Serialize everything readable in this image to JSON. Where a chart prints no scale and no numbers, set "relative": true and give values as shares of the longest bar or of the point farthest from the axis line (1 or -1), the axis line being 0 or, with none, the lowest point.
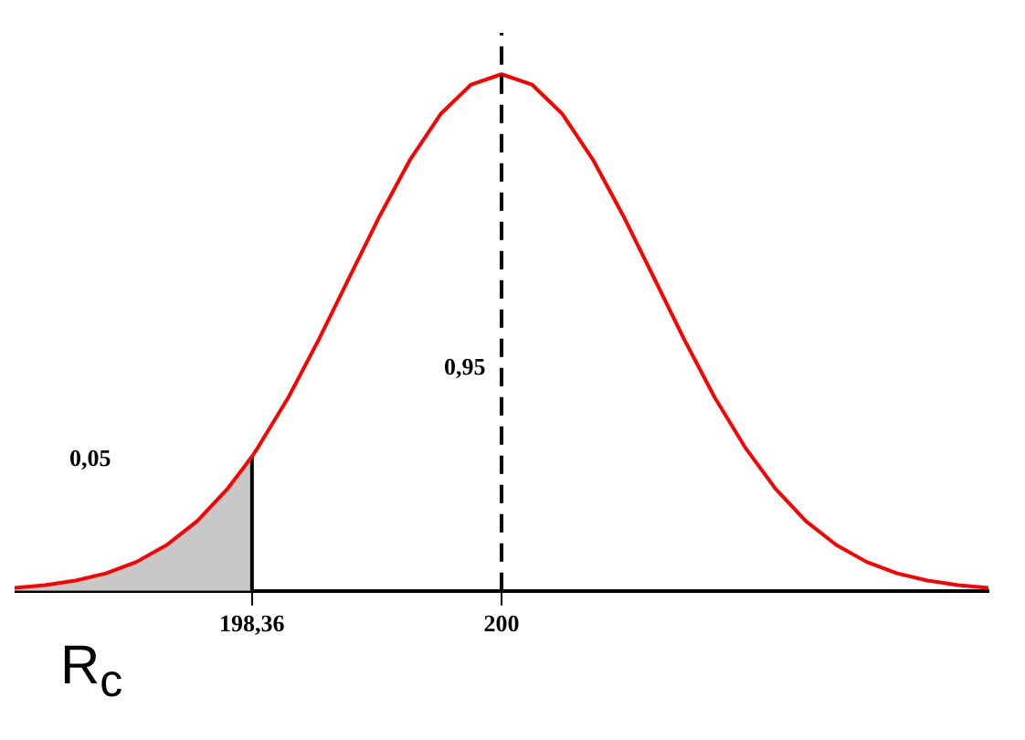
{
  "chart_data": {
    "type": "line",
    "relative": true,
    "series": [
      {
        "color": "#ff0000",
        "x": [
          196.8,
          197,
          197.2,
          197.4,
          197.6,
          197.8,
          198,
          198.2,
          198.36,
          198.4,
          198.6,
          198.8,
          199,
          199.2,
          199.4,
          199.6,
          199.8,
          200,
          200.2,
          200.4,
          200.6,
          200.8,
          201,
          201.2,
          201.4,
          201.6,
          201.8,
          202,
          202.2,
          202.4,
          202.6,
          202.8,
          203,
          203.2
        ],
        "values": [
          0.006,
          0.011,
          0.02,
          0.034,
          0.056,
          0.089,
          0.135,
          0.198,
          0.26,
          0.278,
          0.375,
          0.487,
          0.607,
          0.726,
          0.835,
          0.923,
          0.98,
          1,
          0.98,
          0.923,
          0.835,
          0.726,
          0.607,
          0.487,
          0.375,
          0.278,
          0.198,
          0.135,
          0.089,
          0.056,
          0.034,
          0.02,
          0.011,
          0.006
        ]
      },
      {
        "type": "area",
        "color": "#c8c8c8",
        "x": [
          196.8,
          197,
          197.2,
          197.4,
          197.6,
          197.8,
          198,
          198.2,
          198.36
        ],
        "values": [
          0.006,
          0.011,
          0.02,
          0.034,
          0.056,
          0.089,
          0.135,
          0.198,
          0.26
        ]
      },
      {
        "type": "line",
        "color": "#000000",
        "x": [
          198.36,
          198.36
        ],
        "values": [
          0,
          0.26
        ]
      }
    ],
    "xlim": [
      196.8,
      203.2
    ],
    "xticks": [
      {
        "value": 198.36,
        "label": "198,36"
      },
      {
        "value": 200,
        "label": "200"
      }
    ],
    "ref_lines": [
      {
        "axis": "x",
        "value": 200,
        "line_style": "dashed",
        "color": "#000000"
      }
    ],
    "annotations": [
      "0,05",
      "0,95",
      "R$_{c}$"
    ],
    "grid": false,
    "legend": false,
    "tick_labels": "x"
  }
}
